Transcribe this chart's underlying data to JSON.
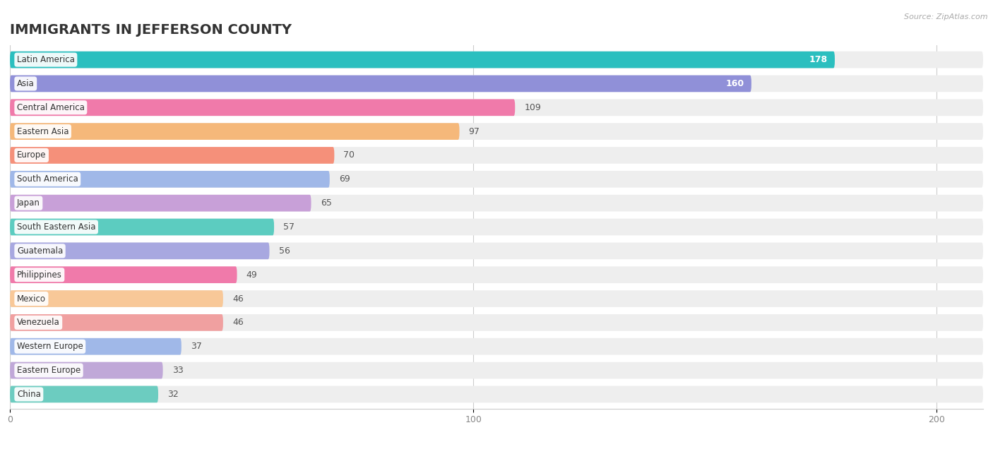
{
  "title": "IMMIGRANTS IN JEFFERSON COUNTY",
  "source": "Source: ZipAtlas.com",
  "categories": [
    "Latin America",
    "Asia",
    "Central America",
    "Eastern Asia",
    "Europe",
    "South America",
    "Japan",
    "South Eastern Asia",
    "Guatemala",
    "Philippines",
    "Mexico",
    "Venezuela",
    "Western Europe",
    "Eastern Europe",
    "China"
  ],
  "values": [
    178,
    160,
    109,
    97,
    70,
    69,
    65,
    57,
    56,
    49,
    46,
    46,
    37,
    33,
    32
  ],
  "bar_colors": [
    "#2bbfbf",
    "#9090d8",
    "#f07aaa",
    "#f5b87a",
    "#f5907a",
    "#a0b8e8",
    "#c8a0d8",
    "#5cccc0",
    "#a8a8e0",
    "#f07aaa",
    "#f8c898",
    "#f0a0a0",
    "#a0b8e8",
    "#c0a8d8",
    "#6cccc0"
  ],
  "xlim_max": 210,
  "data_max": 200,
  "xticks": [
    0,
    100,
    200
  ],
  "background_color": "#ffffff",
  "bar_bg_color": "#eeeeee",
  "title_fontsize": 14,
  "bar_height": 0.7,
  "value_threshold_white": 110
}
